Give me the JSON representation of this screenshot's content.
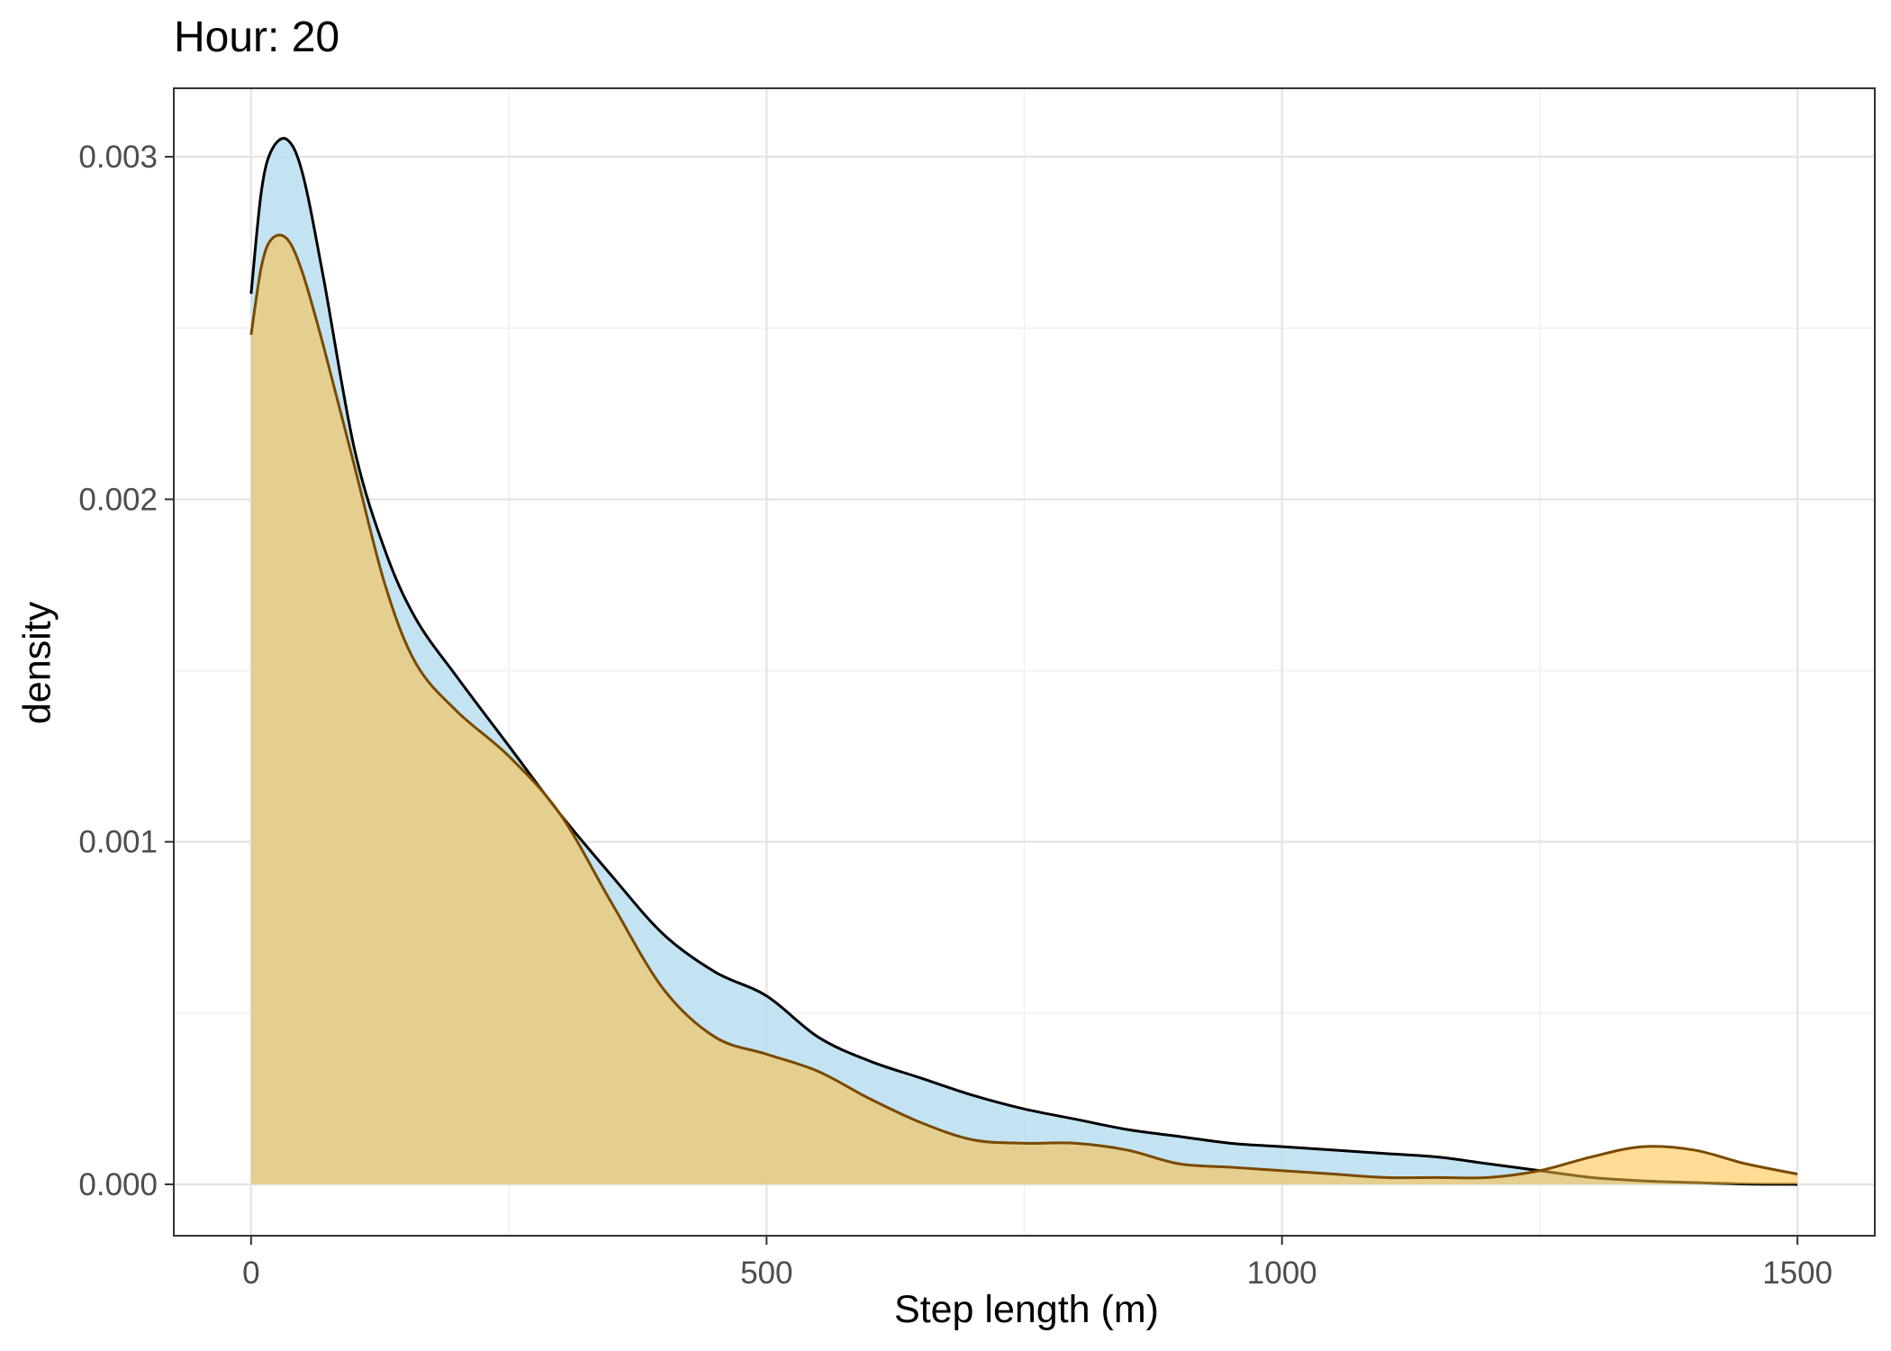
{
  "chart_data": {
    "type": "area",
    "title": "Hour: 20",
    "xlabel": "Step length (m)",
    "ylabel": "density",
    "xlim": [
      -75,
      1575
    ],
    "ylim": [
      -0.00015,
      0.0032
    ],
    "x_ticks": [
      0,
      500,
      1000,
      1500
    ],
    "x_tick_labels": [
      "0",
      "500",
      "1000",
      "1500"
    ],
    "y_ticks": [
      0.0,
      0.001,
      0.002,
      0.003
    ],
    "y_tick_labels": [
      "0.000",
      "0.001",
      "0.002",
      "0.003"
    ],
    "grid": true,
    "legend": "none",
    "series": [
      {
        "fill": "#b8def0",
        "stroke": "#000000",
        "opacity": 0.85,
        "x": [
          0,
          10,
          20,
          35,
          50,
          70,
          100,
          130,
          160,
          200,
          250,
          300,
          350,
          400,
          450,
          500,
          550,
          600,
          650,
          700,
          750,
          800,
          850,
          900,
          950,
          1000,
          1050,
          1100,
          1150,
          1200,
          1250,
          1300,
          1350,
          1400,
          1450,
          1500
        ],
        "y": [
          0.0026,
          0.0029,
          0.00302,
          0.00305,
          0.00295,
          0.00265,
          0.00215,
          0.00185,
          0.00165,
          0.00148,
          0.00128,
          0.00108,
          0.0009,
          0.00073,
          0.00062,
          0.00055,
          0.00043,
          0.00036,
          0.00031,
          0.00026,
          0.00022,
          0.00019,
          0.00016,
          0.00014,
          0.00012,
          0.00011,
          0.0001,
          9e-05,
          8e-05,
          6e-05,
          4e-05,
          2e-05,
          1e-05,
          5e-06,
          1e-06,
          0.0
        ]
      },
      {
        "fill": "#ffbf40",
        "stroke": "#7a4a00",
        "opacity": 0.55,
        "x": [
          0,
          10,
          20,
          35,
          50,
          70,
          100,
          130,
          160,
          200,
          250,
          300,
          350,
          400,
          450,
          500,
          550,
          600,
          650,
          700,
          750,
          800,
          850,
          900,
          950,
          1000,
          1050,
          1100,
          1150,
          1200,
          1250,
          1300,
          1350,
          1400,
          1450,
          1500
        ],
        "y": [
          0.00248,
          0.00268,
          0.00276,
          0.00276,
          0.00266,
          0.00245,
          0.0021,
          0.00175,
          0.00152,
          0.00138,
          0.00125,
          0.00108,
          0.00082,
          0.00057,
          0.00043,
          0.00038,
          0.00033,
          0.00025,
          0.00018,
          0.00013,
          0.00012,
          0.00012,
          0.0001,
          6e-05,
          5e-05,
          4e-05,
          3e-05,
          2e-05,
          2e-05,
          2e-05,
          4e-05,
          8e-05,
          0.00011,
          0.0001,
          6e-05,
          3e-05
        ]
      }
    ]
  }
}
